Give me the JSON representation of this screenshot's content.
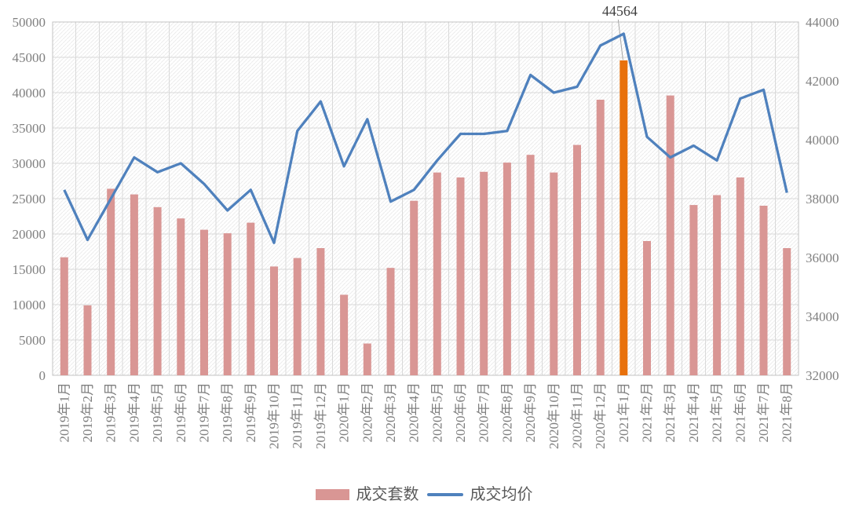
{
  "chart_data": {
    "type": "bar+line combo",
    "categories": [
      "2019年1月",
      "2019年2月",
      "2019年3月",
      "2019年4月",
      "2019年5月",
      "2019年6月",
      "2019年7月",
      "2019年8月",
      "2019年9月",
      "2019年10月",
      "2019年11月",
      "2019年12月",
      "2020年1月",
      "2020年2月",
      "2020年3月",
      "2020年4月",
      "2020年5月",
      "2020年6月",
      "2020年7月",
      "2020年8月",
      "2020年9月",
      "2020年10月",
      "2020年11月",
      "2020年12月",
      "2021年1月",
      "2021年2月",
      "2021年3月",
      "2021年4月",
      "2021年5月",
      "2021年6月",
      "2021年7月",
      "2021年8月"
    ],
    "series": [
      {
        "name": "成交套数",
        "type": "bar",
        "axis": "left",
        "color": "#d99694",
        "values": [
          16700,
          9900,
          26400,
          25600,
          23800,
          22200,
          20600,
          20100,
          21600,
          15400,
          16600,
          18000,
          11400,
          4500,
          15200,
          24700,
          28700,
          28000,
          28800,
          30100,
          31200,
          28700,
          32600,
          39000,
          44564,
          19000,
          39600,
          24100,
          25500,
          28000,
          24000,
          18000
        ],
        "highlight": {
          "index": 24,
          "color": "#e8710c",
          "label": "44564"
        }
      },
      {
        "name": "成交均价",
        "type": "line",
        "axis": "right",
        "color": "#4f81bd",
        "values": [
          38300,
          36600,
          38000,
          39400,
          38900,
          39200,
          38500,
          37600,
          38300,
          36500,
          40300,
          41300,
          39100,
          40700,
          37900,
          38300,
          39300,
          40200,
          40200,
          40300,
          42200,
          41600,
          41800,
          43200,
          43600,
          40100,
          39400,
          39800,
          39300,
          41400,
          41700,
          38200
        ]
      }
    ],
    "left_axis": {
      "min": 0,
      "max": 50000,
      "step": 5000,
      "ticks": [
        "0",
        "5000",
        "10000",
        "15000",
        "20000",
        "25000",
        "30000",
        "35000",
        "40000",
        "45000",
        "50000"
      ]
    },
    "right_axis": {
      "min": 32000,
      "max": 44000,
      "step": 2000,
      "ticks": [
        "32000",
        "34000",
        "36000",
        "38000",
        "40000",
        "42000",
        "44000"
      ]
    },
    "annotation": {
      "text": "44564",
      "category": "2021年1月"
    },
    "grid": true,
    "grid_color": "#d9d9d9",
    "plot_border_color": "#c3c3c3",
    "hatch_color": "#ececec",
    "axis_text_color": "#7f7f7f",
    "legend_position": "bottom"
  },
  "legend": {
    "items": [
      {
        "label": "成交套数",
        "swatch": "bar"
      },
      {
        "label": "成交均价",
        "swatch": "line"
      }
    ]
  }
}
